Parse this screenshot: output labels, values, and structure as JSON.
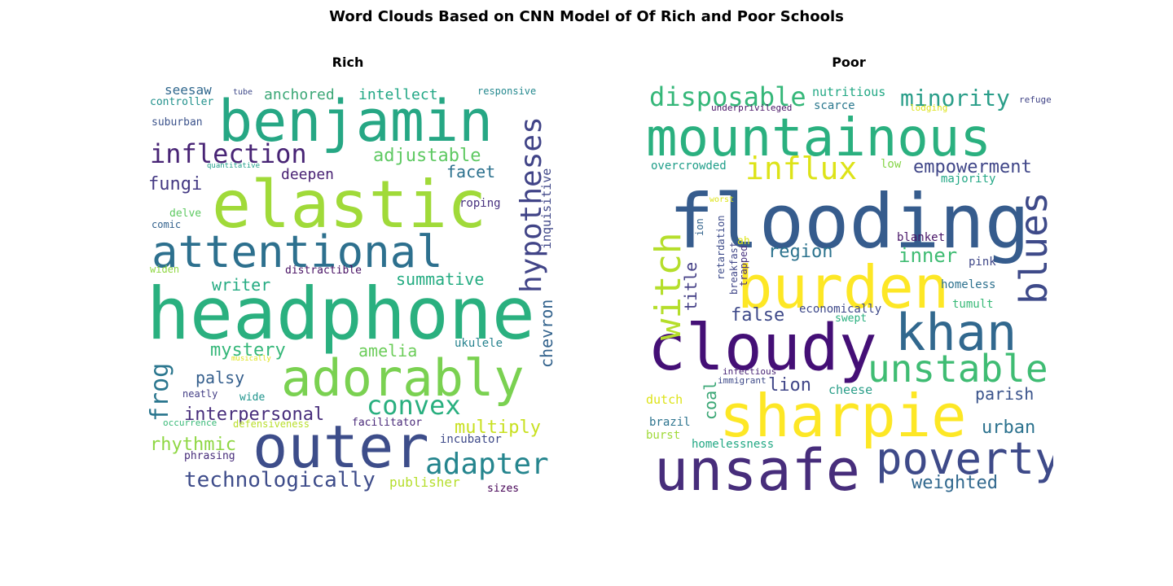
{
  "title": "Word Clouds Based on CNN Model of Of Rich and Poor Schools",
  "panels": [
    {
      "title": "Rich",
      "words": [
        {
          "text": "headphone",
          "color": "#2ab07f"
        },
        {
          "text": "elastic",
          "color": "#a0da39"
        },
        {
          "text": "benjamin",
          "color": "#26a784"
        },
        {
          "text": "attentional",
          "color": "#2d708e"
        },
        {
          "text": "outer",
          "color": "#3d4d8a"
        },
        {
          "text": "adorably",
          "color": "#7ad151"
        },
        {
          "text": "hypotheses",
          "color": "#414487"
        },
        {
          "text": "inflection",
          "color": "#482475"
        },
        {
          "text": "adapter",
          "color": "#25858e"
        },
        {
          "text": "convex",
          "color": "#29af7f"
        },
        {
          "text": "technologically",
          "color": "#3e4c8a"
        },
        {
          "text": "frog",
          "color": "#2a768e"
        },
        {
          "text": "adjustable",
          "color": "#5ec962"
        },
        {
          "text": "interpersonal",
          "color": "#472d7b"
        },
        {
          "text": "multiply",
          "color": "#c8e020"
        },
        {
          "text": "rhythmic",
          "color": "#8fd744"
        },
        {
          "text": "summative",
          "color": "#25ac82"
        },
        {
          "text": "chevron",
          "color": "#33638d"
        },
        {
          "text": "anchored",
          "color": "#3ba776"
        },
        {
          "text": "intellect",
          "color": "#22a785"
        },
        {
          "text": "mystery",
          "color": "#35b779"
        },
        {
          "text": "writer",
          "color": "#25ab82"
        },
        {
          "text": "amelia",
          "color": "#6ccd5a"
        },
        {
          "text": "palsy",
          "color": "#355f8d"
        },
        {
          "text": "deepen",
          "color": "#482173"
        },
        {
          "text": "fungi",
          "color": "#443983"
        },
        {
          "text": "facet",
          "color": "#2c718e"
        },
        {
          "text": "inquisitive",
          "color": "#3f4788"
        },
        {
          "text": "publisher",
          "color": "#b5de2b"
        },
        {
          "text": "incubator",
          "color": "#3e4a89"
        },
        {
          "text": "seesaw",
          "color": "#31688e"
        },
        {
          "text": "controller",
          "color": "#21918c"
        },
        {
          "text": "suburban",
          "color": "#3b528b"
        },
        {
          "text": "responsive",
          "color": "#23888e"
        },
        {
          "text": "tube",
          "color": "#3e4989"
        },
        {
          "text": "quantitative",
          "color": "#1f9e89"
        },
        {
          "text": "delve",
          "color": "#5ec962"
        },
        {
          "text": "comic",
          "color": "#33628d"
        },
        {
          "text": "roping",
          "color": "#46307e"
        },
        {
          "text": "widen",
          "color": "#90d743"
        },
        {
          "text": "distractible",
          "color": "#471063"
        },
        {
          "text": "ukulele",
          "color": "#26828e"
        },
        {
          "text": "musically",
          "color": "#dde318"
        },
        {
          "text": "neatly",
          "color": "#433e85"
        },
        {
          "text": "wide",
          "color": "#1f948c"
        },
        {
          "text": "occurrence",
          "color": "#38b977"
        },
        {
          "text": "defensiveness",
          "color": "#b8de29"
        },
        {
          "text": "facilitator",
          "color": "#482878"
        },
        {
          "text": "phrasing",
          "color": "#472c7a"
        },
        {
          "text": "sizes",
          "color": "#440154"
        }
      ]
    },
    {
      "title": "Poor",
      "words": [
        {
          "text": "flooding",
          "color": "#365c8d"
        },
        {
          "text": "mountainous",
          "color": "#2ab07f"
        },
        {
          "text": "cloudy",
          "color": "#440f76"
        },
        {
          "text": "burden",
          "color": "#fde725"
        },
        {
          "text": "sharpie",
          "color": "#fde725"
        },
        {
          "text": "unsafe",
          "color": "#472d7b"
        },
        {
          "text": "khan",
          "color": "#31688e"
        },
        {
          "text": "poverty",
          "color": "#3e4a89"
        },
        {
          "text": "unstable",
          "color": "#3fbc73"
        },
        {
          "text": "blues",
          "color": "#3e4a89"
        },
        {
          "text": "witch",
          "color": "#b5de2b"
        },
        {
          "text": "disposable",
          "color": "#35b779"
        },
        {
          "text": "influx",
          "color": "#dde318"
        },
        {
          "text": "minority",
          "color": "#2a9e89"
        },
        {
          "text": "empowerment",
          "color": "#404688"
        },
        {
          "text": "inner",
          "color": "#3fbc73"
        },
        {
          "text": "region",
          "color": "#2c738e"
        },
        {
          "text": "weighted",
          "color": "#31688e"
        },
        {
          "text": "urban",
          "color": "#2c728e"
        },
        {
          "text": "parish",
          "color": "#3a538b"
        },
        {
          "text": "false",
          "color": "#3e4989"
        },
        {
          "text": "title",
          "color": "#433e85"
        },
        {
          "text": "lion",
          "color": "#404688"
        },
        {
          "text": "coal",
          "color": "#3ba776"
        },
        {
          "text": "nutritious",
          "color": "#22a884"
        },
        {
          "text": "scarce",
          "color": "#2a788e"
        },
        {
          "text": "underprivileged",
          "color": "#471365"
        },
        {
          "text": "lodging",
          "color": "#dde318"
        },
        {
          "text": "refuge",
          "color": "#414487"
        },
        {
          "text": "overcrowded",
          "color": "#1f9e89"
        },
        {
          "text": "low",
          "color": "#86d549"
        },
        {
          "text": "majority",
          "color": "#22a785"
        },
        {
          "text": "worst",
          "color": "#dde318"
        },
        {
          "text": "ah",
          "color": "#dde318"
        },
        {
          "text": "blanket",
          "color": "#481567"
        },
        {
          "text": "pink",
          "color": "#3f4788"
        },
        {
          "text": "homeless",
          "color": "#2d718e"
        },
        {
          "text": "tumult",
          "color": "#38b977"
        },
        {
          "text": "economically",
          "color": "#3e4989"
        },
        {
          "text": "swept",
          "color": "#2ab07f"
        },
        {
          "text": "retardation",
          "color": "#3e4c8a"
        },
        {
          "text": "breakfast",
          "color": "#404688"
        },
        {
          "text": "trapped",
          "color": "#46307e"
        },
        {
          "text": "ion",
          "color": "#33638d"
        },
        {
          "text": "infectious",
          "color": "#482475"
        },
        {
          "text": "immigrant",
          "color": "#3e4a89"
        },
        {
          "text": "cheese",
          "color": "#2a9e89"
        },
        {
          "text": "dutch",
          "color": "#dde318"
        },
        {
          "text": "brazil",
          "color": "#2c738e"
        },
        {
          "text": "burst",
          "color": "#a0da39"
        },
        {
          "text": "homelessness",
          "color": "#22a884"
        }
      ]
    }
  ]
}
